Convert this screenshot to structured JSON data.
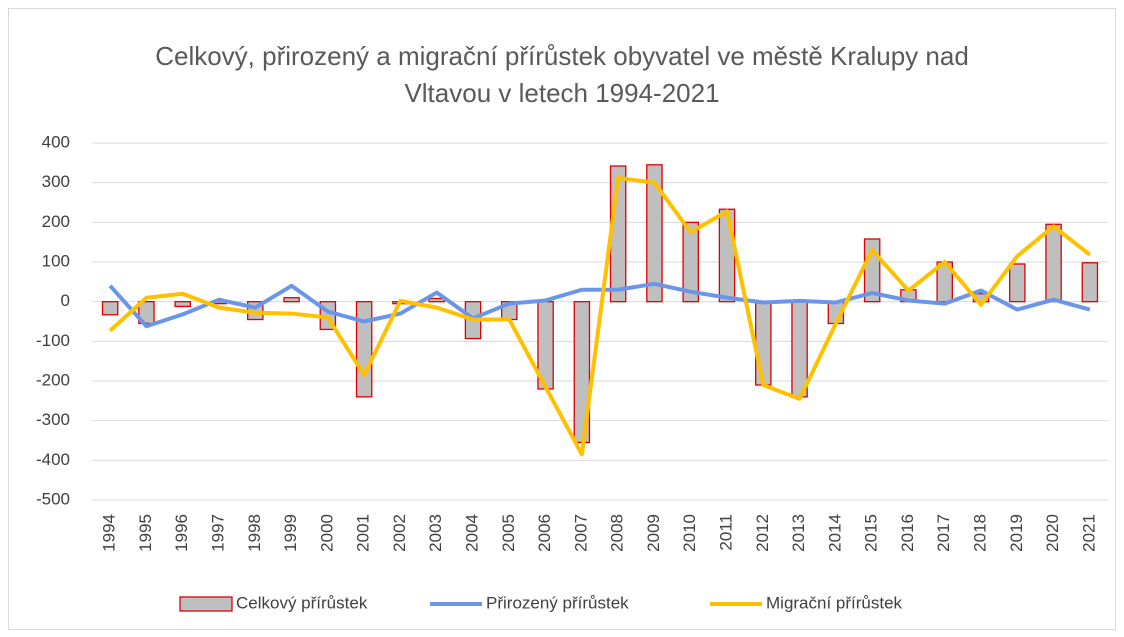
{
  "chart_data": {
    "type": "bar_line",
    "title": "Celkový, přirozený a migrační přírůstek obyvatel ve městě Kralupy nad Vltavou v letech 1994-2021",
    "categories": [
      "1994",
      "1995",
      "1996",
      "1997",
      "1998",
      "1999",
      "2000",
      "2001",
      "2002",
      "2003",
      "2004",
      "2005",
      "2006",
      "2007",
      "2008",
      "2009",
      "2010",
      "2011",
      "2012",
      "2013",
      "2014",
      "2015",
      "2016",
      "2017",
      "2018",
      "2019",
      "2020",
      "2021"
    ],
    "series": [
      {
        "name": "Celkový přírůstek",
        "type": "bar",
        "color": "#bfbfbf",
        "edge_color": "#e00000",
        "values": [
          -33,
          -55,
          -12,
          -5,
          -45,
          10,
          -70,
          -240,
          -5,
          8,
          -93,
          -45,
          -220,
          -355,
          342,
          345,
          200,
          233,
          -210,
          -240,
          -55,
          158,
          30,
          100,
          20,
          95,
          195,
          98
        ]
      },
      {
        "name": "Přirozený přírůstek",
        "type": "line",
        "color": "#6a96ea",
        "values": [
          40,
          -62,
          -32,
          5,
          -15,
          40,
          -25,
          -50,
          -30,
          23,
          -42,
          -5,
          3,
          30,
          30,
          45,
          25,
          10,
          -2,
          2,
          -2,
          22,
          3,
          -5,
          28,
          -20,
          5,
          -20
        ]
      },
      {
        "name": "Migrační přírůstek",
        "type": "line",
        "color": "#ffc000",
        "values": [
          -73,
          10,
          20,
          -15,
          -28,
          -30,
          -40,
          -185,
          2,
          -15,
          -45,
          -45,
          -215,
          -385,
          312,
          300,
          175,
          228,
          -210,
          -245,
          -55,
          130,
          28,
          100,
          -8,
          115,
          190,
          118
        ]
      }
    ],
    "ylim": [
      -500,
      400
    ],
    "yticks": [
      400,
      300,
      200,
      100,
      0,
      -100,
      -200,
      -300,
      -400,
      -500
    ],
    "grid": true,
    "legend": "bottom"
  }
}
